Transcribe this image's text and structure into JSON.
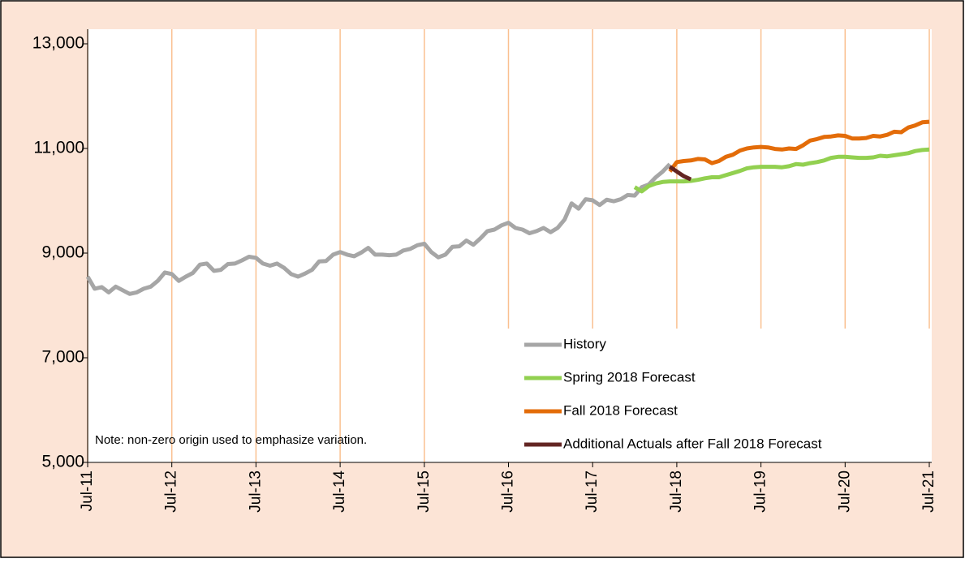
{
  "chart_data": {
    "type": "line",
    "note": "Note: non-zero origin used to emphasize variation.",
    "categories": [
      "Jul-11",
      null,
      null,
      null,
      null,
      null,
      null,
      null,
      null,
      null,
      null,
      null,
      "Jul-12",
      null,
      null,
      null,
      null,
      null,
      null,
      null,
      null,
      null,
      null,
      null,
      "Jul-13",
      null,
      null,
      null,
      null,
      null,
      null,
      null,
      null,
      null,
      null,
      null,
      "Jul-14",
      null,
      null,
      null,
      null,
      null,
      null,
      null,
      null,
      null,
      null,
      null,
      "Jul-15",
      null,
      null,
      null,
      null,
      null,
      null,
      null,
      null,
      null,
      null,
      null,
      "Jul-16",
      null,
      null,
      null,
      null,
      null,
      null,
      null,
      null,
      null,
      null,
      null,
      "Jul-17",
      null,
      null,
      null,
      null,
      null,
      null,
      null,
      null,
      null,
      null,
      null,
      "Jul-18",
      null,
      null,
      null,
      null,
      null,
      null,
      null,
      null,
      null,
      null,
      null,
      "Jul-19",
      null,
      null,
      null,
      null,
      null,
      null,
      null,
      null,
      null,
      null,
      null,
      "Jul-20",
      null,
      null,
      null,
      null,
      null,
      null,
      null,
      null,
      null,
      null,
      null,
      "Jul-21"
    ],
    "series": [
      {
        "name": "History",
        "color": "#a6a6a6",
        "values": [
          8550,
          8320,
          8350,
          8250,
          8360,
          8290,
          8220,
          8250,
          8320,
          8360,
          8470,
          8630,
          8600,
          8470,
          8550,
          8620,
          8780,
          8800,
          8660,
          8680,
          8790,
          8800,
          8860,
          8930,
          8910,
          8800,
          8760,
          8800,
          8720,
          8600,
          8550,
          8610,
          8680,
          8840,
          8850,
          8970,
          9020,
          8970,
          8940,
          9010,
          9100,
          8970,
          8970,
          8960,
          8970,
          9050,
          9080,
          9150,
          9180,
          9020,
          8920,
          8970,
          9120,
          9130,
          9240,
          9160,
          9280,
          9420,
          9450,
          9530,
          9580,
          9480,
          9450,
          9380,
          9420,
          9480,
          9400,
          9480,
          9640,
          9950,
          9850,
          10030,
          10010,
          9920,
          10020,
          9990,
          10030,
          10110,
          10100,
          10260,
          10310,
          10450,
          10560,
          10700,
          null,
          null,
          null,
          null,
          null,
          null,
          null,
          null,
          null,
          null,
          null,
          null,
          null,
          null,
          null,
          null,
          null,
          null,
          null,
          null,
          null,
          null,
          null,
          null,
          null,
          null,
          null,
          null,
          null,
          null,
          null,
          null,
          null,
          null,
          null,
          null,
          null
        ]
      },
      {
        "name": "Spring 2018 Forecast",
        "color": "#92d050",
        "values": [
          null,
          null,
          null,
          null,
          null,
          null,
          null,
          null,
          null,
          null,
          null,
          null,
          null,
          null,
          null,
          null,
          null,
          null,
          null,
          null,
          null,
          null,
          null,
          null,
          null,
          null,
          null,
          null,
          null,
          null,
          null,
          null,
          null,
          null,
          null,
          null,
          null,
          null,
          null,
          null,
          null,
          null,
          null,
          null,
          null,
          null,
          null,
          null,
          null,
          null,
          null,
          null,
          null,
          null,
          null,
          null,
          null,
          null,
          null,
          null,
          null,
          null,
          null,
          null,
          null,
          null,
          null,
          null,
          null,
          null,
          null,
          null,
          null,
          null,
          null,
          null,
          null,
          null,
          10260,
          10180,
          10280,
          10330,
          10360,
          10370,
          10370,
          10370,
          10380,
          10400,
          10430,
          10450,
          10450,
          10490,
          10530,
          10570,
          10620,
          10640,
          10650,
          10650,
          10650,
          10640,
          10660,
          10700,
          10690,
          10720,
          10740,
          10770,
          10820,
          10840,
          10840,
          10830,
          10820,
          10820,
          10830,
          10860,
          10850,
          10870,
          10890,
          10910,
          10950,
          10970,
          10980
        ]
      },
      {
        "name": "Fall 2018 Forecast",
        "color": "#e36c09",
        "values": [
          null,
          null,
          null,
          null,
          null,
          null,
          null,
          null,
          null,
          null,
          null,
          null,
          null,
          null,
          null,
          null,
          null,
          null,
          null,
          null,
          null,
          null,
          null,
          null,
          null,
          null,
          null,
          null,
          null,
          null,
          null,
          null,
          null,
          null,
          null,
          null,
          null,
          null,
          null,
          null,
          null,
          null,
          null,
          null,
          null,
          null,
          null,
          null,
          null,
          null,
          null,
          null,
          null,
          null,
          null,
          null,
          null,
          null,
          null,
          null,
          null,
          null,
          null,
          null,
          null,
          null,
          null,
          null,
          null,
          null,
          null,
          null,
          null,
          null,
          null,
          null,
          null,
          null,
          null,
          null,
          null,
          null,
          null,
          10560,
          10740,
          10760,
          10770,
          10800,
          10790,
          10720,
          10760,
          10840,
          10880,
          10960,
          11000,
          11020,
          11030,
          11020,
          10990,
          10980,
          11000,
          10990,
          11060,
          11150,
          11180,
          11220,
          11230,
          11250,
          11240,
          11190,
          11190,
          11200,
          11240,
          11230,
          11260,
          11320,
          11310,
          11400,
          11440,
          11500,
          11510
        ]
      },
      {
        "name": "Additional Actuals after Fall 2018 Forecast",
        "color": "#632523",
        "values": [
          null,
          null,
          null,
          null,
          null,
          null,
          null,
          null,
          null,
          null,
          null,
          null,
          null,
          null,
          null,
          null,
          null,
          null,
          null,
          null,
          null,
          null,
          null,
          null,
          null,
          null,
          null,
          null,
          null,
          null,
          null,
          null,
          null,
          null,
          null,
          null,
          null,
          null,
          null,
          null,
          null,
          null,
          null,
          null,
          null,
          null,
          null,
          null,
          null,
          null,
          null,
          null,
          null,
          null,
          null,
          null,
          null,
          null,
          null,
          null,
          null,
          null,
          null,
          null,
          null,
          null,
          null,
          null,
          null,
          null,
          null,
          null,
          null,
          null,
          null,
          null,
          null,
          null,
          null,
          null,
          null,
          null,
          null,
          10650,
          10560,
          10470,
          10410,
          null,
          null,
          null,
          null,
          null,
          null,
          null,
          null,
          null,
          null,
          null,
          null,
          null,
          null,
          null,
          null,
          null,
          null,
          null,
          null,
          null,
          null,
          null,
          null,
          null,
          null,
          null,
          null,
          null,
          null,
          null,
          null,
          null,
          null
        ]
      }
    ],
    "ylim": [
      5000,
      13000
    ],
    "yticks": [
      {
        "value": 5000,
        "label": "5,000"
      },
      {
        "value": 7000,
        "label": "7,000"
      },
      {
        "value": 9000,
        "label": "9,000"
      },
      {
        "value": 11000,
        "label": "11,000"
      },
      {
        "value": 13000,
        "label": "13,000"
      }
    ],
    "grid": "x",
    "legend": "lower right"
  }
}
